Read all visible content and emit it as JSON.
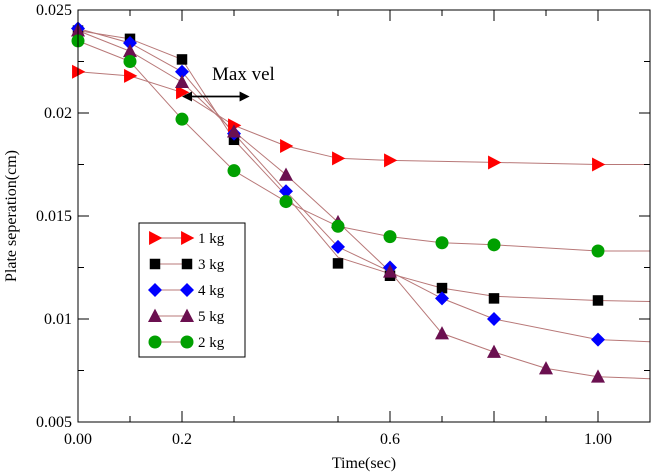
{
  "chart_data": {
    "type": "line",
    "title": "",
    "xlabel": "Time(sec)",
    "ylabel": "Plate seperation(cm)",
    "xlim": [
      0.0,
      1.1
    ],
    "ylim": [
      0.005,
      0.025
    ],
    "x_ticks": [
      0.0,
      0.2,
      0.6,
      1.0
    ],
    "x_tick_labels": [
      "0.00",
      "0.2",
      "0.6",
      "1.00"
    ],
    "y_ticks": [
      0.005,
      0.01,
      0.015,
      0.02,
      0.025
    ],
    "y_tick_labels": [
      "0.005",
      "0.01",
      "0.015",
      "0.02",
      "0.025"
    ],
    "line_color": "#b87878",
    "legend_location": "left-center",
    "series": [
      {
        "name": "1 kg",
        "marker": "triangle-right",
        "color": "#ff0000",
        "x": [
          0.0,
          0.1,
          0.2,
          0.3,
          0.4,
          0.5,
          0.6,
          0.8,
          1.0
        ],
        "y": [
          0.022,
          0.0218,
          0.021,
          0.0194,
          0.0184,
          0.0178,
          0.0177,
          0.0176,
          0.0175
        ],
        "curve_x": [
          0.0,
          0.1,
          0.2,
          0.3,
          0.4,
          0.5,
          0.6,
          0.8,
          1.0,
          1.1
        ],
        "curve_y": [
          0.022,
          0.0218,
          0.021,
          0.0194,
          0.0184,
          0.0178,
          0.0177,
          0.0176,
          0.0175,
          0.0175
        ]
      },
      {
        "name": "3 kg",
        "marker": "square",
        "color": "#000000",
        "x": [
          0.0,
          0.1,
          0.2,
          0.3,
          0.5,
          0.6,
          0.7,
          0.8,
          1.0
        ],
        "y": [
          0.024,
          0.0236,
          0.0226,
          0.0187,
          0.0127,
          0.0121,
          0.0115,
          0.011,
          0.0109
        ],
        "curve_x": [
          0.0,
          0.1,
          0.2,
          0.3,
          0.4,
          0.5,
          0.6,
          0.7,
          0.8,
          1.0,
          1.1
        ],
        "curve_y": [
          0.024,
          0.0236,
          0.0226,
          0.0187,
          0.016,
          0.013,
          0.0122,
          0.0115,
          0.0111,
          0.0109,
          0.01085
        ]
      },
      {
        "name": "4 kg",
        "marker": "diamond",
        "color": "#0000ff",
        "x": [
          0.0,
          0.1,
          0.2,
          0.3,
          0.4,
          0.5,
          0.6,
          0.7,
          0.8,
          1.0
        ],
        "y": [
          0.0241,
          0.0234,
          0.022,
          0.019,
          0.0162,
          0.0135,
          0.0125,
          0.011,
          0.01,
          0.009
        ],
        "curve_x": [
          0.0,
          0.1,
          0.2,
          0.3,
          0.4,
          0.5,
          0.6,
          0.7,
          0.8,
          1.0,
          1.1
        ],
        "curve_y": [
          0.0241,
          0.0234,
          0.022,
          0.019,
          0.0162,
          0.0135,
          0.0123,
          0.011,
          0.01,
          0.009,
          0.0089
        ]
      },
      {
        "name": "5 kg",
        "marker": "triangle-up",
        "color": "#6b1050",
        "x": [
          0.0,
          0.1,
          0.2,
          0.3,
          0.4,
          0.5,
          0.6,
          0.7,
          0.8,
          0.9,
          1.0
        ],
        "y": [
          0.024,
          0.023,
          0.0215,
          0.0191,
          0.017,
          0.0147,
          0.0123,
          0.0093,
          0.0084,
          0.0076,
          0.0072
        ],
        "curve_x": [
          0.0,
          0.1,
          0.2,
          0.3,
          0.4,
          0.5,
          0.6,
          0.7,
          0.8,
          0.9,
          1.0,
          1.1
        ],
        "curve_y": [
          0.024,
          0.023,
          0.0215,
          0.0191,
          0.017,
          0.0147,
          0.0123,
          0.0093,
          0.0084,
          0.0076,
          0.0072,
          0.0071
        ]
      },
      {
        "name": "2 kg",
        "marker": "circle",
        "color": "#00a000",
        "x": [
          0.0,
          0.1,
          0.2,
          0.3,
          0.4,
          0.5,
          0.6,
          0.7,
          0.8,
          1.0
        ],
        "y": [
          0.0235,
          0.0225,
          0.0197,
          0.0172,
          0.0157,
          0.0145,
          0.014,
          0.0137,
          0.0136,
          0.0133
        ],
        "curve_x": [
          0.0,
          0.1,
          0.2,
          0.3,
          0.4,
          0.5,
          0.6,
          0.7,
          0.8,
          1.0,
          1.1
        ],
        "curve_y": [
          0.0235,
          0.0225,
          0.0197,
          0.0172,
          0.0157,
          0.0145,
          0.014,
          0.0137,
          0.0136,
          0.0133,
          0.0133
        ]
      }
    ],
    "annotation": {
      "text": "Max vel",
      "arrow_from_x": 0.2,
      "arrow_to_x": 0.33,
      "arrow_y": 0.0208
    }
  }
}
